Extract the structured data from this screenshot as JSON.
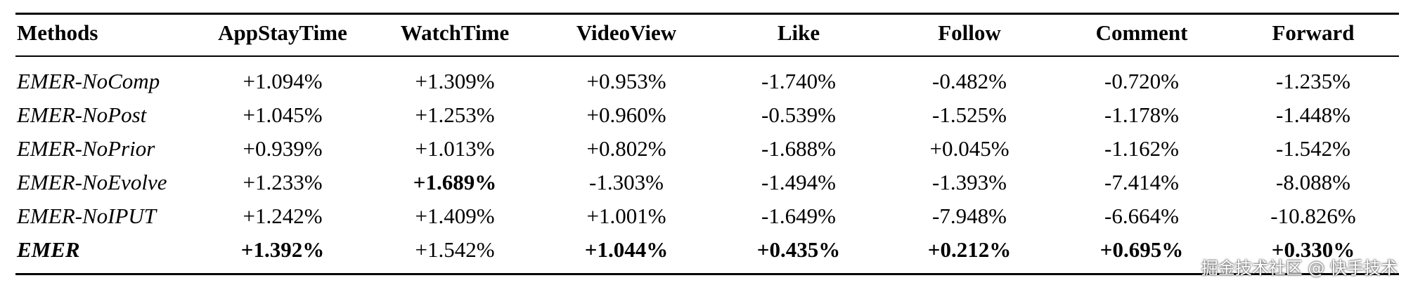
{
  "table": {
    "header": [
      "Methods",
      "AppStayTime",
      "WatchTime",
      "VideoView",
      "Like",
      "Follow",
      "Comment",
      "Forward"
    ],
    "rows": [
      [
        "EMER-NoComp",
        "+1.094%",
        "+1.309%",
        "+0.953%",
        "-1.740%",
        "-0.482%",
        "-0.720%",
        "-1.235%"
      ],
      [
        "EMER-NoPost",
        "+1.045%",
        "+1.253%",
        "+0.960%",
        "-0.539%",
        "-1.525%",
        "-1.178%",
        "-1.448%"
      ],
      [
        "EMER-NoPrior",
        "+0.939%",
        "+1.013%",
        "+0.802%",
        "-1.688%",
        "+0.045%",
        "-1.162%",
        "-1.542%"
      ],
      [
        "EMER-NoEvolve",
        "+1.233%",
        "+1.689%",
        "-1.303%",
        "-1.494%",
        "-1.393%",
        "-7.414%",
        "-8.088%"
      ],
      [
        "EMER-NoIPUT",
        "+1.242%",
        "+1.409%",
        "+1.001%",
        "-1.649%",
        "-7.948%",
        "-6.664%",
        "-10.826%"
      ],
      [
        "EMER",
        "+1.392%",
        "+1.542%",
        "+1.044%",
        "+0.435%",
        "+0.212%",
        "+0.695%",
        "+0.330%"
      ]
    ],
    "bold_cells": [
      [
        3,
        2
      ],
      [
        5,
        0
      ],
      [
        5,
        1
      ],
      [
        5,
        3
      ],
      [
        5,
        4
      ],
      [
        5,
        5
      ],
      [
        5,
        6
      ],
      [
        5,
        7
      ]
    ]
  },
  "watermark": "掘金技术社区 @ 快手技术"
}
